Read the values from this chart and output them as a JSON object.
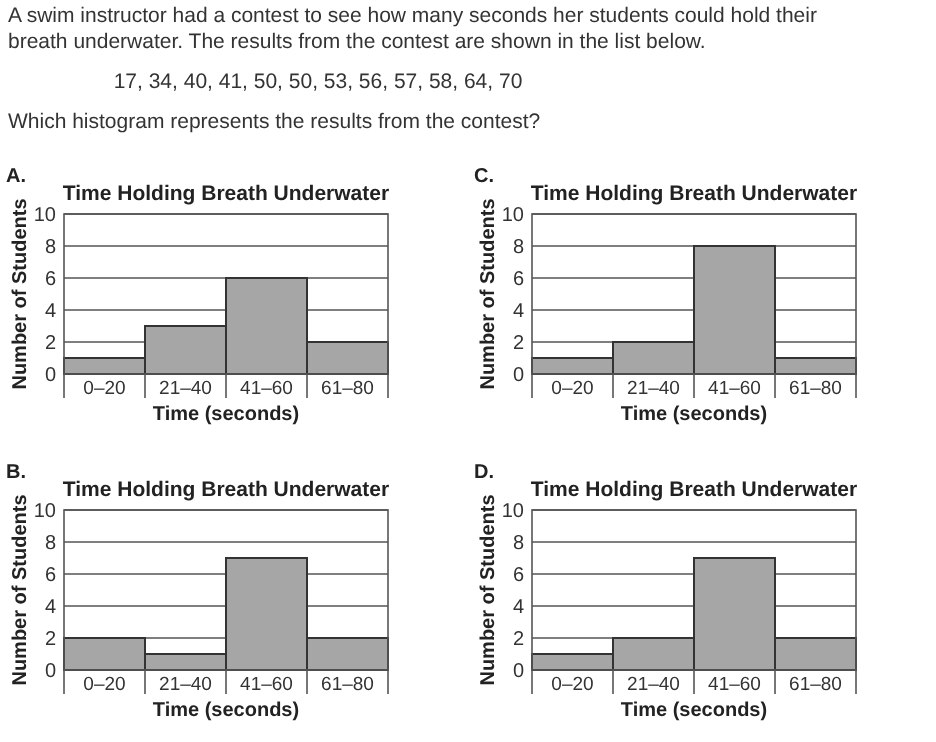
{
  "chart_data": [
    {
      "type": "bar",
      "title": "Time Holding Breath Underwater",
      "xlabel": "Time (seconds)",
      "ylabel": "Number of Students",
      "annotations": [
        "A swim instructor had a contest to see how many seconds her students could hold their breath underwater. The results from the contest are shown in the list below.",
        "17, 34, 40, 41, 50, 50, 53, 56, 57, 58, 64, 70",
        "Which histogram represents the results from the contest?",
        "A."
      ],
      "categories": [
        "0–20",
        "21–40",
        "41–60",
        "61–80"
      ],
      "values": [
        1,
        3,
        6,
        2
      ],
      "color": "#a6a6a6",
      "ylim": [
        0,
        10
      ],
      "yticks": [
        0,
        2,
        4,
        6,
        8,
        10
      ],
      "grid": "y"
    },
    {
      "type": "bar",
      "title": "Time Holding Breath Underwater",
      "xlabel": "Time (seconds)",
      "ylabel": "Number of Students",
      "annotations": [
        "C."
      ],
      "categories": [
        "0–20",
        "21–40",
        "41–60",
        "61–80"
      ],
      "values": [
        1,
        2,
        8,
        1
      ],
      "color": "#a6a6a6",
      "ylim": [
        0,
        10
      ],
      "yticks": [
        0,
        2,
        4,
        6,
        8,
        10
      ],
      "grid": "y"
    },
    {
      "type": "bar",
      "title": "Time Holding Breath Underwater",
      "xlabel": "Time (seconds)",
      "ylabel": "Number of Students",
      "annotations": [
        "B."
      ],
      "categories": [
        "0–20",
        "21–40",
        "41–60",
        "61–80"
      ],
      "values": [
        2,
        1,
        7,
        2
      ],
      "color": "#a6a6a6",
      "ylim": [
        0,
        10
      ],
      "yticks": [
        0,
        2,
        4,
        6,
        8,
        10
      ],
      "grid": "y"
    },
    {
      "type": "bar",
      "title": "Time Holding Breath Underwater",
      "xlabel": "Time (seconds)",
      "ylabel": "Number of Students",
      "annotations": [
        "D."
      ],
      "categories": [
        "0–20",
        "21–40",
        "41–60",
        "61–80"
      ],
      "values": [
        1,
        2,
        7,
        2
      ],
      "color": "#a6a6a6",
      "ylim": [
        0,
        10
      ],
      "yticks": [
        0,
        2,
        4,
        6,
        8,
        10
      ],
      "grid": "y"
    }
  ]
}
